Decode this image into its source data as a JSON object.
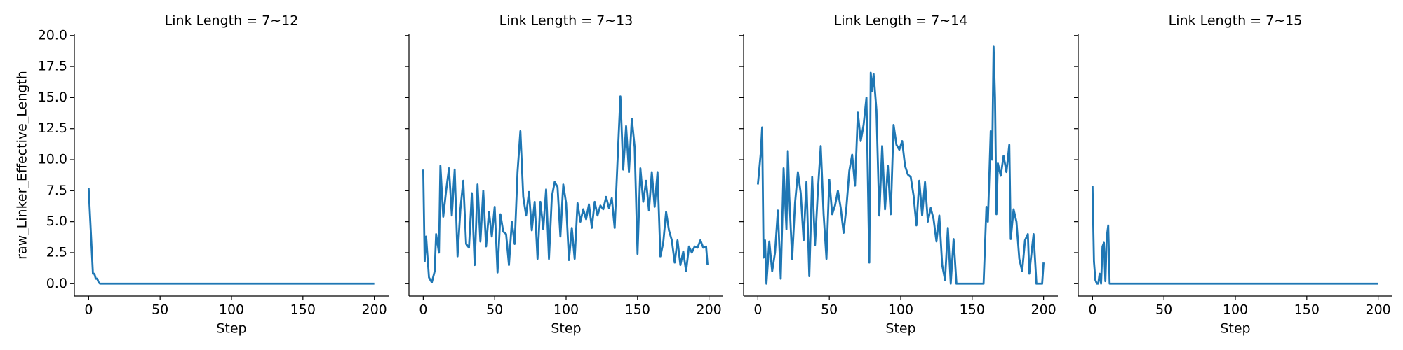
{
  "chart_data": [
    {
      "type": "line",
      "title": "Link Length = 7~12",
      "xlabel": "Step",
      "ylabel": "raw_Linker_Effective_Length",
      "xlim": [
        -10,
        210
      ],
      "ylim": [
        -1,
        20.1
      ],
      "xticks": [
        0,
        50,
        100,
        150,
        200
      ],
      "yticks": [
        {
          "value": 0,
          "label": "0.0"
        },
        {
          "value": 2.5,
          "label": "2.5"
        },
        {
          "value": 5,
          "label": "5.0"
        },
        {
          "value": 7.5,
          "label": "7.5"
        },
        {
          "value": 10,
          "label": "10.0"
        },
        {
          "value": 12.5,
          "label": "12.5"
        },
        {
          "value": 15,
          "label": "15.0"
        },
        {
          "value": 17.5,
          "label": "17.5"
        },
        {
          "value": 20,
          "label": "20.0"
        }
      ],
      "color": "#1f77b4",
      "x": [
        0,
        3,
        4,
        5,
        6,
        7,
        8,
        200
      ],
      "values": [
        7.7,
        0.8,
        0.8,
        0.4,
        0.4,
        0.1,
        0,
        0
      ]
    },
    {
      "type": "line",
      "title": "Link Length = 7~13",
      "xlabel": "Step",
      "xlim": [
        -10,
        210
      ],
      "ylim": [
        -1,
        20.1
      ],
      "xticks": [
        0,
        50,
        100,
        150,
        200
      ],
      "color": "#1f77b4",
      "x": [
        0,
        1,
        2,
        4,
        6,
        8,
        9,
        11,
        12,
        14,
        16,
        18,
        20,
        22,
        24,
        26,
        28,
        30,
        32,
        34,
        36,
        38,
        40,
        42,
        44,
        46,
        48,
        50,
        52,
        54,
        56,
        58,
        60,
        62,
        64,
        66,
        68,
        70,
        72,
        74,
        76,
        78,
        80,
        82,
        84,
        86,
        88,
        90,
        92,
        94,
        96,
        98,
        100,
        102,
        104,
        106,
        108,
        110,
        112,
        114,
        116,
        118,
        120,
        122,
        124,
        126,
        128,
        130,
        132,
        134,
        136,
        138,
        140,
        142,
        144,
        146,
        148,
        150,
        152,
        154,
        156,
        158,
        160,
        162,
        164,
        166,
        168,
        170,
        172,
        174,
        176,
        178,
        180,
        182,
        184,
        186,
        188,
        190,
        192,
        194,
        196,
        198,
        199
      ],
      "values": [
        9.2,
        1.8,
        3.8,
        0.5,
        0.1,
        1.0,
        4.0,
        2.5,
        9.5,
        5.4,
        7.5,
        9.3,
        5.5,
        9.2,
        2.2,
        6.0,
        8.3,
        3.2,
        2.9,
        7.3,
        1.5,
        8.0,
        3.4,
        7.5,
        3.0,
        5.8,
        3.8,
        6.2,
        0.9,
        5.6,
        4.2,
        4.0,
        1.5,
        5.0,
        3.2,
        9.0,
        12.3,
        7.0,
        5.5,
        7.4,
        4.3,
        6.6,
        2.0,
        6.6,
        4.4,
        7.6,
        2.0,
        7.0,
        8.2,
        7.8,
        3.8,
        8.0,
        6.5,
        1.9,
        4.5,
        2.0,
        6.5,
        5.0,
        6.0,
        5.2,
        6.4,
        4.5,
        6.6,
        5.5,
        6.3,
        6.0,
        7.0,
        6.1,
        6.9,
        4.5,
        9.9,
        15.1,
        9.2,
        12.7,
        9.0,
        13.3,
        11.0,
        2.4,
        9.3,
        6.6,
        8.3,
        5.9,
        9.0,
        6.2,
        9.0,
        2.2,
        3.3,
        5.8,
        4.3,
        3.5,
        1.7,
        3.5,
        1.5,
        2.6,
        1.0,
        3.0,
        2.5,
        3.0,
        2.9,
        3.5,
        2.9,
        3.0,
        1.5
      ]
    },
    {
      "type": "line",
      "title": "Link Length = 7~14",
      "xlabel": "Step",
      "xlim": [
        -10,
        210
      ],
      "ylim": [
        -1,
        20.1
      ],
      "xticks": [
        0,
        50,
        100,
        150,
        200
      ],
      "color": "#1f77b4",
      "x": [
        0,
        2,
        3,
        4,
        5,
        6,
        8,
        10,
        12,
        14,
        16,
        18,
        20,
        21,
        22,
        24,
        26,
        28,
        30,
        32,
        34,
        36,
        38,
        40,
        42,
        44,
        46,
        48,
        50,
        52,
        54,
        56,
        58,
        60,
        62,
        64,
        66,
        68,
        70,
        72,
        74,
        76,
        78,
        79,
        80,
        81,
        83,
        85,
        87,
        89,
        91,
        93,
        95,
        97,
        99,
        101,
        103,
        105,
        107,
        109,
        111,
        113,
        115,
        117,
        119,
        121,
        123,
        125,
        127,
        129,
        131,
        133,
        135,
        137,
        139,
        141,
        143,
        145,
        158,
        160,
        161,
        163,
        164,
        165,
        166,
        167,
        168,
        170,
        172,
        174,
        176,
        177,
        179,
        181,
        183,
        185,
        187,
        189,
        190,
        191,
        193,
        195,
        199,
        200
      ],
      "values": [
        8.0,
        10.5,
        12.6,
        2.1,
        3.5,
        0,
        3.4,
        1.0,
        2.5,
        5.9,
        0.4,
        9.3,
        4.4,
        10.7,
        7.0,
        2.0,
        6.5,
        9.0,
        7.3,
        3.5,
        8.2,
        0.6,
        8.6,
        3.1,
        7.5,
        11.1,
        5.6,
        2.0,
        8.4,
        5.6,
        6.3,
        7.5,
        6.1,
        4.1,
        6.2,
        9.1,
        10.4,
        7.9,
        13.8,
        11.5,
        12.8,
        15.0,
        1.7,
        17.0,
        15.5,
        16.9,
        14.0,
        5.5,
        11.1,
        6.0,
        9.5,
        5.6,
        12.8,
        11.2,
        10.8,
        11.5,
        9.5,
        8.8,
        8.6,
        7.1,
        4.7,
        8.3,
        5.5,
        8.2,
        5.0,
        6.1,
        5.2,
        3.4,
        5.5,
        1.5,
        0.3,
        4.5,
        0,
        3.6,
        0,
        0,
        0,
        0,
        0,
        6.2,
        5.0,
        12.3,
        10.0,
        19.1,
        15.0,
        5.6,
        9.7,
        8.7,
        10.3,
        9.0,
        11.2,
        3.6,
        6.0,
        5.0,
        2.0,
        1.0,
        3.5,
        4.0,
        0.8,
        1.9,
        4.0,
        0,
        0,
        1.7
      ]
    },
    {
      "type": "line",
      "title": "Link Length = 7~15",
      "xlabel": "Step",
      "xlim": [
        -10,
        210
      ],
      "ylim": [
        -1,
        20.1
      ],
      "xticks": [
        0,
        50,
        100,
        150,
        200
      ],
      "color": "#1f77b4",
      "x": [
        0,
        1,
        2,
        3,
        4,
        5,
        6,
        7,
        8,
        9,
        10,
        11,
        12,
        200
      ],
      "values": [
        7.9,
        1.8,
        0.3,
        0,
        0,
        0.8,
        0,
        3.0,
        3.3,
        0.2,
        3.8,
        4.7,
        0,
        0
      ]
    }
  ]
}
